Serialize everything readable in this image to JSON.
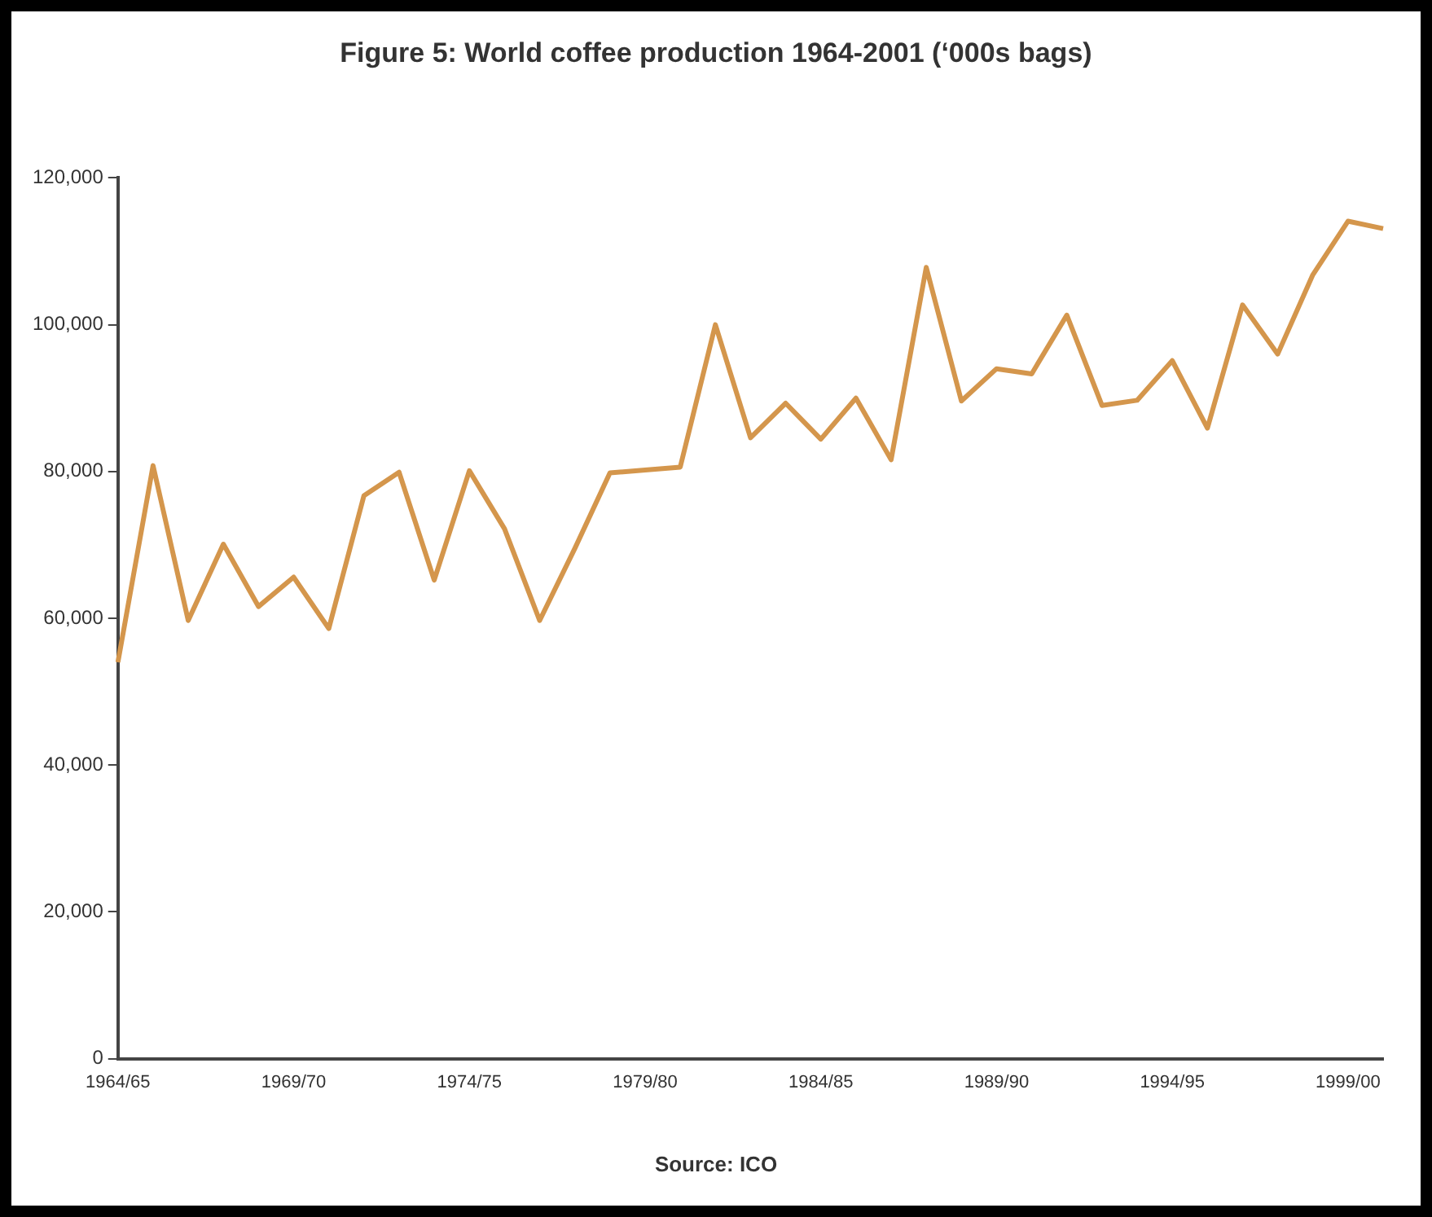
{
  "chart_data": {
    "type": "line",
    "title": "Figure 5: World coffee production 1964-2001 (‘000s bags)",
    "categories": [
      "1964/65",
      null,
      null,
      null,
      null,
      "1969/70",
      null,
      null,
      null,
      null,
      "1974/75",
      null,
      null,
      null,
      null,
      "1979/80",
      null,
      null,
      null,
      null,
      "1984/85",
      null,
      null,
      null,
      null,
      "1989/90",
      null,
      null,
      null,
      null,
      "1994/95",
      null,
      null,
      null,
      null,
      "1999/00",
      null
    ],
    "series": [
      {
        "color": "#d4964c",
        "values": [
          54000,
          80800,
          59700,
          70100,
          61600,
          65600,
          58600,
          76700,
          79900,
          65200,
          80100,
          72200,
          59700,
          69500,
          79800,
          80200,
          80600,
          100000,
          84600,
          89300,
          84400,
          90000,
          81600,
          107800,
          89600,
          94000,
          93300,
          101300,
          89000,
          89700,
          95100,
          85900,
          102700,
          96000,
          106800,
          114100,
          113100
        ]
      }
    ],
    "ylim": [
      0,
      120000
    ],
    "yticks": [
      {
        "value": 0,
        "label": "0"
      },
      {
        "value": 20000,
        "label": "20,000"
      },
      {
        "value": 40000,
        "label": "40,000"
      },
      {
        "value": 60000,
        "label": "60,000"
      },
      {
        "value": 80000,
        "label": "80,000"
      },
      {
        "value": 100000,
        "label": "100,000"
      },
      {
        "value": 120000,
        "label": "120,000"
      }
    ],
    "grid": false,
    "legend": false,
    "marker": "none",
    "line_style": "solid",
    "annotations": [
      "Source: ICO"
    ]
  }
}
